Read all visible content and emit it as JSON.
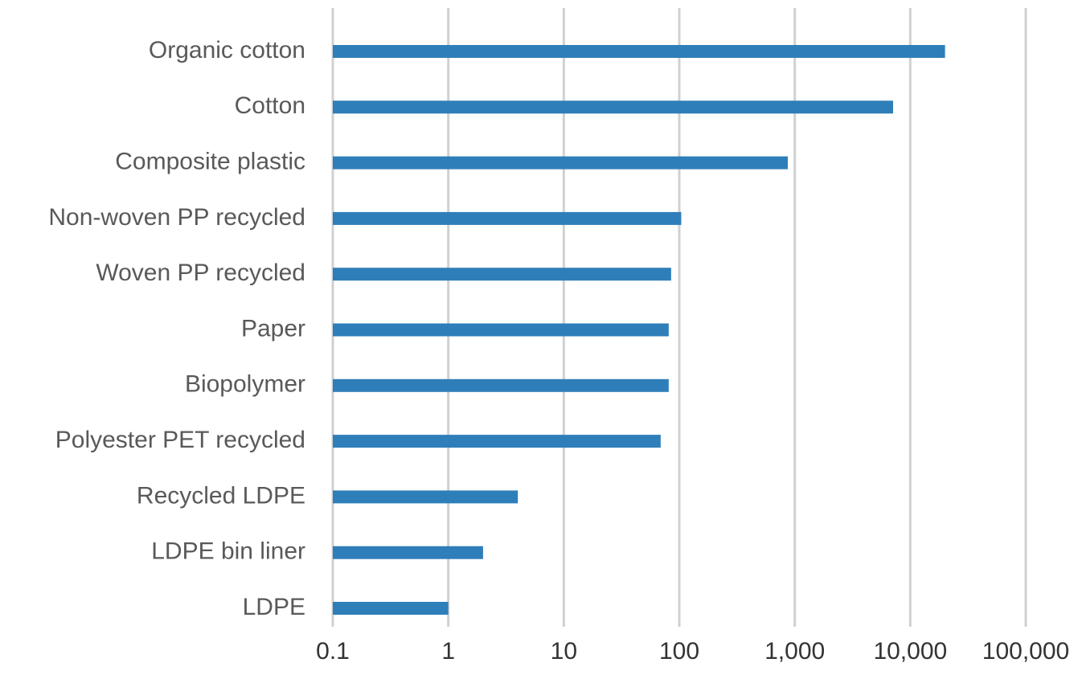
{
  "chart_data": {
    "type": "bar",
    "orientation": "horizontal",
    "x_scale": "log",
    "xlim": [
      0.1,
      100000
    ],
    "x_ticks": [
      0.1,
      1,
      10,
      100,
      1000,
      10000,
      100000
    ],
    "x_tick_labels": [
      "0.1",
      "1",
      "10",
      "100",
      "1,000",
      "10,000",
      "100,000"
    ],
    "categories": [
      "Organic cotton",
      "Cotton",
      "Composite plastic",
      "Non-woven PP recycled",
      "Woven PP recycled",
      "Paper",
      "Biopolymer",
      "Polyester PET recycled",
      "Recycled LDPE",
      "LDPE bin liner",
      "LDPE"
    ],
    "values": [
      20000,
      7100,
      870,
      104,
      85,
      81,
      81,
      69,
      4,
      2,
      1
    ],
    "title": "",
    "xlabel": "",
    "ylabel": "",
    "grid": true,
    "legend": "none",
    "bar_color": "#2E7EB9",
    "grid_color": "#D0D0D0"
  }
}
